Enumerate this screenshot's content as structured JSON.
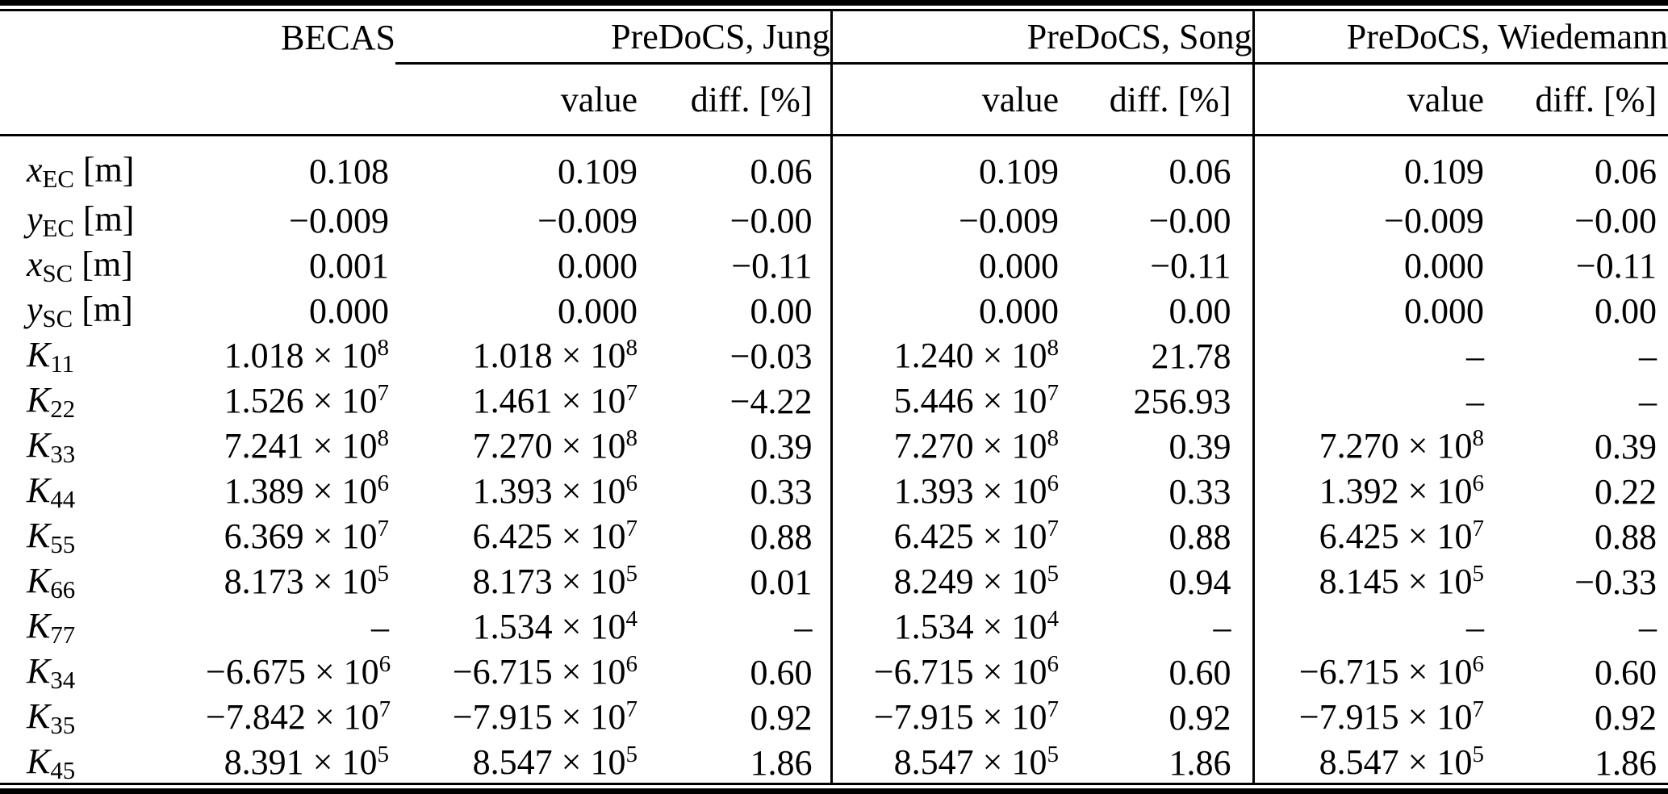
{
  "table": {
    "groups": [
      {
        "label": "BECAS"
      },
      {
        "label": "PreDoCS, Jung"
      },
      {
        "label": "PreDoCS, Song"
      },
      {
        "label": "PreDoCS, Wiedemann"
      }
    ],
    "subheader": {
      "value": "value",
      "diff": "diff. [%]"
    },
    "missing_marker": "–",
    "rows": [
      {
        "label": {
          "var": "x",
          "sub": "EC",
          "unit": "[m]"
        },
        "becas": "0.108",
        "jung": {
          "value": "0.109",
          "diff": "0.06"
        },
        "song": {
          "value": "0.109",
          "diff": "0.06"
        },
        "wiedemann": {
          "value": "0.109",
          "diff": "0.06"
        }
      },
      {
        "label": {
          "var": "y",
          "sub": "EC",
          "unit": "[m]"
        },
        "becas": "−0.009",
        "jung": {
          "value": "−0.009",
          "diff": "−0.00"
        },
        "song": {
          "value": "−0.009",
          "diff": "−0.00"
        },
        "wiedemann": {
          "value": "−0.009",
          "diff": "−0.00"
        }
      },
      {
        "label": {
          "var": "x",
          "sub": "SC",
          "unit": "[m]"
        },
        "becas": "0.001",
        "jung": {
          "value": "0.000",
          "diff": "−0.11"
        },
        "song": {
          "value": "0.000",
          "diff": "−0.11"
        },
        "wiedemann": {
          "value": "0.000",
          "diff": "−0.11"
        }
      },
      {
        "label": {
          "var": "y",
          "sub": "SC",
          "unit": "[m]"
        },
        "becas": "0.000",
        "jung": {
          "value": "0.000",
          "diff": "0.00"
        },
        "song": {
          "value": "0.000",
          "diff": "0.00"
        },
        "wiedemann": {
          "value": "0.000",
          "diff": "0.00"
        }
      },
      {
        "label": {
          "var": "K",
          "sub": "11",
          "unit": ""
        },
        "becas": "1.018 × 10^8",
        "jung": {
          "value": "1.018 × 10^8",
          "diff": "−0.03"
        },
        "song": {
          "value": "1.240 × 10^8",
          "diff": "21.78"
        },
        "wiedemann": {
          "value": "–",
          "diff": "–"
        }
      },
      {
        "label": {
          "var": "K",
          "sub": "22",
          "unit": ""
        },
        "becas": "1.526 × 10^7",
        "jung": {
          "value": "1.461 × 10^7",
          "diff": "−4.22"
        },
        "song": {
          "value": "5.446 × 10^7",
          "diff": "256.93"
        },
        "wiedemann": {
          "value": "–",
          "diff": "–"
        }
      },
      {
        "label": {
          "var": "K",
          "sub": "33",
          "unit": ""
        },
        "becas": "7.241 × 10^8",
        "jung": {
          "value": "7.270 × 10^8",
          "diff": "0.39"
        },
        "song": {
          "value": "7.270 × 10^8",
          "diff": "0.39"
        },
        "wiedemann": {
          "value": "7.270 × 10^8",
          "diff": "0.39"
        }
      },
      {
        "label": {
          "var": "K",
          "sub": "44",
          "unit": ""
        },
        "becas": "1.389 × 10^6",
        "jung": {
          "value": "1.393 × 10^6",
          "diff": "0.33"
        },
        "song": {
          "value": "1.393 × 10^6",
          "diff": "0.33"
        },
        "wiedemann": {
          "value": "1.392 × 10^6",
          "diff": "0.22"
        }
      },
      {
        "label": {
          "var": "K",
          "sub": "55",
          "unit": ""
        },
        "becas": "6.369 × 10^7",
        "jung": {
          "value": "6.425 × 10^7",
          "diff": "0.88"
        },
        "song": {
          "value": "6.425 × 10^7",
          "diff": "0.88"
        },
        "wiedemann": {
          "value": "6.425 × 10^7",
          "diff": "0.88"
        }
      },
      {
        "label": {
          "var": "K",
          "sub": "66",
          "unit": ""
        },
        "becas": "8.173 × 10^5",
        "jung": {
          "value": "8.173 × 10^5",
          "diff": "0.01"
        },
        "song": {
          "value": "8.249 × 10^5",
          "diff": "0.94"
        },
        "wiedemann": {
          "value": "8.145 × 10^5",
          "diff": "−0.33"
        }
      },
      {
        "label": {
          "var": "K",
          "sub": "77",
          "unit": ""
        },
        "becas": "–",
        "jung": {
          "value": "1.534 × 10^4",
          "diff": "–"
        },
        "song": {
          "value": "1.534 × 10^4",
          "diff": "–"
        },
        "wiedemann": {
          "value": "–",
          "diff": "–"
        }
      },
      {
        "label": {
          "var": "K",
          "sub": "34",
          "unit": ""
        },
        "becas": "−6.675 × 10^6",
        "jung": {
          "value": "−6.715 × 10^6",
          "diff": "0.60"
        },
        "song": {
          "value": "−6.715 × 10^6",
          "diff": "0.60"
        },
        "wiedemann": {
          "value": "−6.715 × 10^6",
          "diff": "0.60"
        }
      },
      {
        "label": {
          "var": "K",
          "sub": "35",
          "unit": ""
        },
        "becas": "−7.842 × 10^7",
        "jung": {
          "value": "−7.915 × 10^7",
          "diff": "0.92"
        },
        "song": {
          "value": "−7.915 × 10^7",
          "diff": "0.92"
        },
        "wiedemann": {
          "value": "−7.915 × 10^7",
          "diff": "0.92"
        }
      },
      {
        "label": {
          "var": "K",
          "sub": "45",
          "unit": ""
        },
        "becas": "8.391 × 10^5",
        "jung": {
          "value": "8.547 × 10^5",
          "diff": "1.86"
        },
        "song": {
          "value": "8.547 × 10^5",
          "diff": "1.86"
        },
        "wiedemann": {
          "value": "8.547 × 10^5",
          "diff": "1.86"
        }
      }
    ]
  }
}
